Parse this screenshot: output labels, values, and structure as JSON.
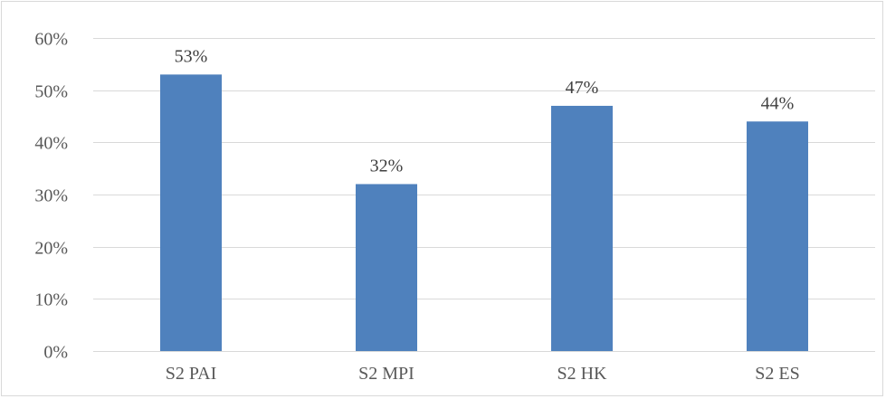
{
  "chart_data": {
    "type": "bar",
    "categories": [
      "S2 PAI",
      "S2 MPI",
      "S2 HK",
      "S2 ES"
    ],
    "values": [
      53,
      32,
      47,
      44
    ],
    "data_labels": [
      "53%",
      "32%",
      "47%",
      "44%"
    ],
    "y_ticks": [
      0,
      10,
      20,
      30,
      40,
      50,
      60
    ],
    "y_tick_labels": [
      "0%",
      "10%",
      "20%",
      "30%",
      "40%",
      "50%",
      "60%"
    ],
    "ylim": [
      0,
      60
    ],
    "title": "",
    "xlabel": "",
    "ylabel": "",
    "grid": true,
    "legend": "none",
    "colors": {
      "bar": "#4f81bd",
      "grid": "#d9d9d9",
      "tick_text": "#595959",
      "data_label_text": "#404040"
    }
  }
}
